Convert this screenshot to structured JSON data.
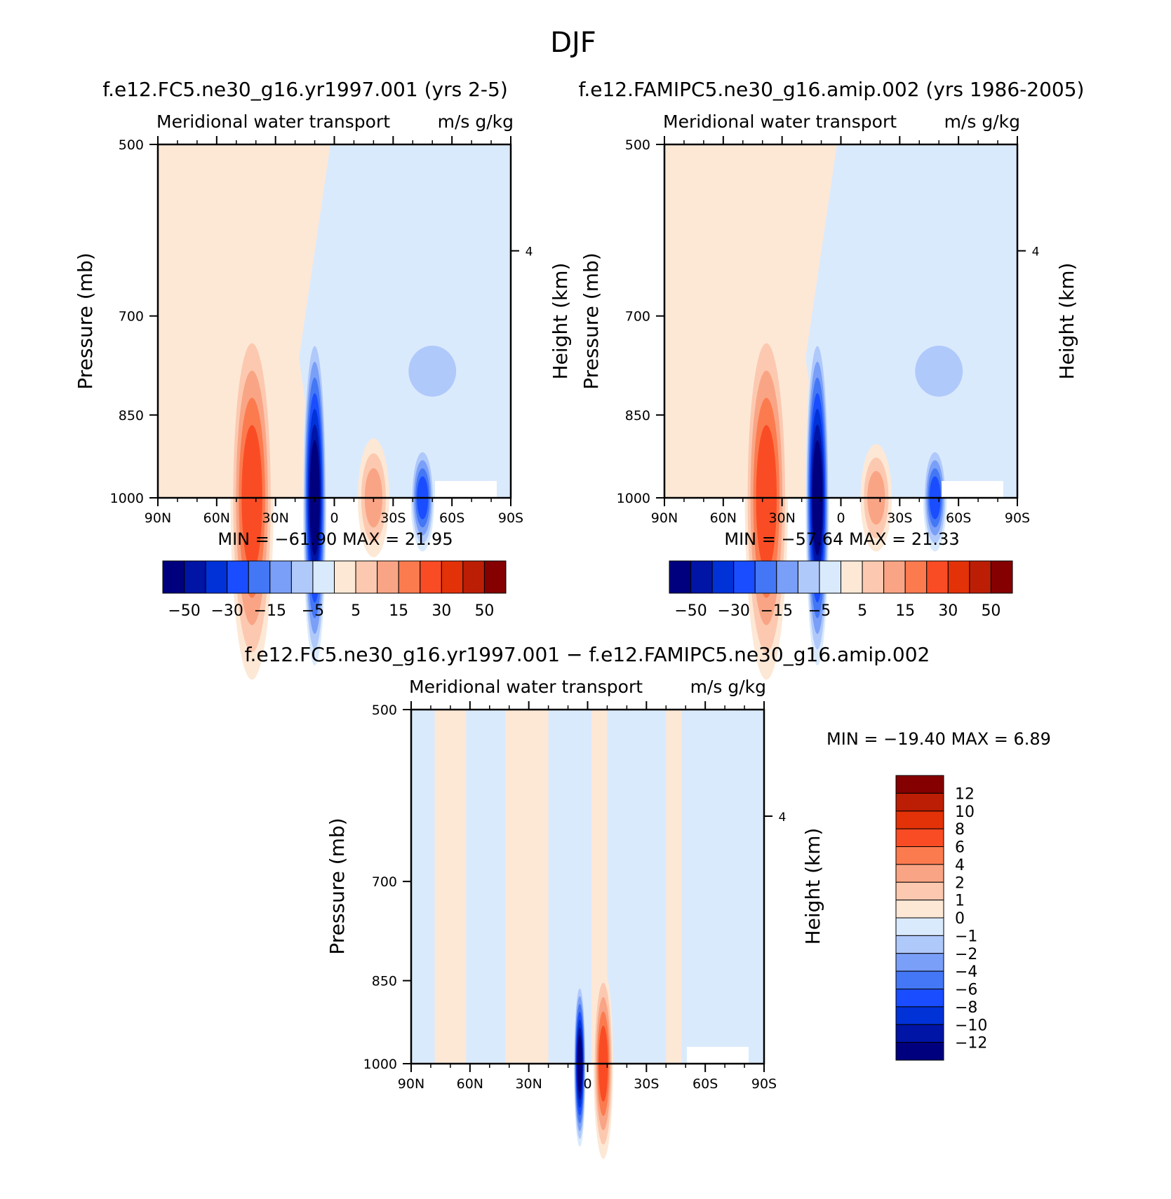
{
  "figure": {
    "title": "DJF"
  },
  "chart_data": [
    {
      "type": "heatmap",
      "panel": "top-left",
      "title": "f.e12.FC5.ne30_g16.yr1997.001 (yrs 2-5)",
      "left_string": "Meridional water transport",
      "right_string": "m/s g/kg",
      "ylabel": "Pressure (mb)",
      "ylabel_right": "Height (km)",
      "xticks": [
        "90N",
        "60N",
        "30N",
        "0",
        "30S",
        "60S",
        "90S"
      ],
      "yticks": [
        "500",
        "700",
        "850",
        "1000"
      ],
      "right_ticks": [
        "4"
      ],
      "min_max": "MIN = −61.90   MAX =   21.95",
      "colorbar_labels": [
        "−50",
        "−30",
        "−15",
        "−5",
        "5",
        "15",
        "30",
        "50"
      ],
      "levels": [
        -50,
        -40,
        -30,
        -20,
        -15,
        -10,
        -5,
        0,
        5,
        10,
        15,
        20,
        30,
        40,
        50
      ],
      "features": [
        {
          "lat": 10,
          "p": 1000,
          "value": -61.9,
          "width_deg": 6,
          "top_p": 720
        },
        {
          "lat": 42,
          "p": 1000,
          "value": 21.95,
          "width_deg": 11,
          "top_p": 700
        },
        {
          "lat": -20,
          "p": 1000,
          "value": 15,
          "width_deg": 8,
          "top_p": 890
        },
        {
          "lat": -45,
          "p": 1000,
          "value": -25,
          "width_deg": 6,
          "top_p": 900
        },
        {
          "lat": -50,
          "p": 780,
          "value": -10,
          "width_deg": 18,
          "top_p": 720
        }
      ]
    },
    {
      "type": "heatmap",
      "panel": "top-right",
      "title": "f.e12.FAMIPC5.ne30_g16.amip.002 (yrs 1986-2005)",
      "left_string": "Meridional water transport",
      "right_string": "m/s g/kg",
      "ylabel": "Pressure (mb)",
      "ylabel_right": "Height (km)",
      "xticks": [
        "90N",
        "60N",
        "30N",
        "0",
        "30S",
        "60S",
        "90S"
      ],
      "yticks": [
        "500",
        "700",
        "850",
        "1000"
      ],
      "right_ticks": [
        "4"
      ],
      "min_max": "MIN = −57.64   MAX =   21.33",
      "colorbar_labels": [
        "−50",
        "−30",
        "−15",
        "−5",
        "5",
        "15",
        "30",
        "50"
      ],
      "levels": [
        -50,
        -40,
        -30,
        -20,
        -15,
        -10,
        -5,
        0,
        5,
        10,
        15,
        20,
        30,
        40,
        50
      ],
      "features": [
        {
          "lat": 12,
          "p": 1000,
          "value": -57.64,
          "width_deg": 6,
          "top_p": 720
        },
        {
          "lat": 38,
          "p": 1000,
          "value": 21.33,
          "width_deg": 11,
          "top_p": 700
        },
        {
          "lat": -18,
          "p": 1000,
          "value": 14,
          "width_deg": 8,
          "top_p": 900
        },
        {
          "lat": -48,
          "p": 1000,
          "value": -25,
          "width_deg": 6,
          "top_p": 900
        },
        {
          "lat": -50,
          "p": 780,
          "value": -10,
          "width_deg": 18,
          "top_p": 720
        }
      ]
    },
    {
      "type": "heatmap",
      "panel": "bottom",
      "title": "f.e12.FC5.ne30_g16.yr1997.001 − f.e12.FAMIPC5.ne30_g16.amip.002",
      "left_string": "Meridional water transport",
      "right_string": "m/s g/kg",
      "ylabel": "Pressure (mb)",
      "ylabel_right": "Height (km)",
      "xticks": [
        "90N",
        "60N",
        "30N",
        "0",
        "30S",
        "60S",
        "90S"
      ],
      "yticks": [
        "500",
        "700",
        "850",
        "1000"
      ],
      "right_ticks": [
        "4"
      ],
      "min_max": "MIN = −19.40   MAX =    6.89",
      "colorbar_labels": [
        "12",
        "10",
        "8",
        "6",
        "4",
        "2",
        "1",
        "0",
        "−1",
        "−2",
        "−4",
        "−6",
        "−8",
        "−10",
        "−12"
      ],
      "levels": [
        -12,
        -10,
        -8,
        -6,
        -4,
        -2,
        -1,
        0,
        1,
        2,
        4,
        6,
        8,
        10,
        12
      ],
      "features": [
        {
          "lat": 4,
          "p": 1000,
          "value": -19.4,
          "width_deg": 3,
          "top_p": 850
        },
        {
          "lat": -8,
          "p": 1000,
          "value": 6.89,
          "width_deg": 5,
          "top_p": 830
        }
      ]
    }
  ],
  "colors": {
    "blue_red_16": [
      "#00007f",
      "#0014a5",
      "#0032d8",
      "#1a4dff",
      "#4477f5",
      "#7a9ff8",
      "#b0c9fb",
      "#daeafd",
      "#fde8d6",
      "#fcc9b0",
      "#f9a585",
      "#fb7b4f",
      "#fa4c24",
      "#e33108",
      "#bc1e05",
      "#850000"
    ]
  }
}
